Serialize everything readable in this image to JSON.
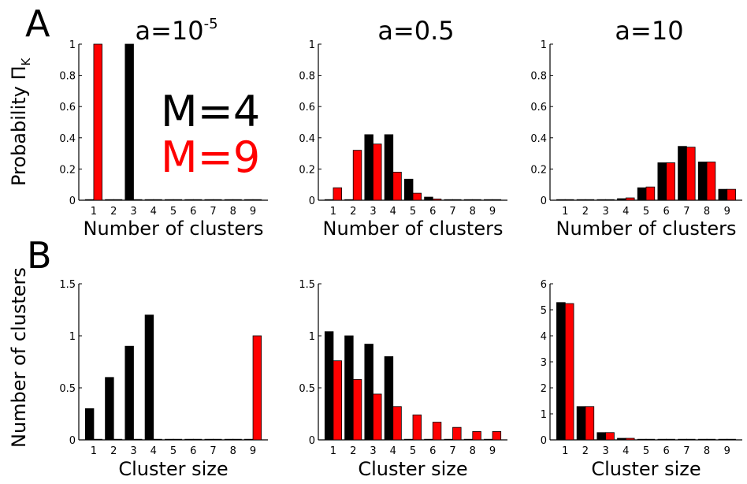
{
  "figure": {
    "panel_letters": [
      "A",
      "B"
    ],
    "row_a_ylabel": "Probability Π",
    "row_a_ylabel_sub": "K",
    "row_b_ylabel": "Number of clusters",
    "legend": [
      {
        "label": "M=4",
        "color": "#000000"
      },
      {
        "label": "M=9",
        "color": "#ff0000"
      }
    ]
  },
  "chart_data": [
    {
      "type": "bar",
      "title": "a=10",
      "title_sup": "-5",
      "xlabel": "Number of clusters",
      "ylabel": "Probability Π_K",
      "categories": [
        "1",
        "2",
        "3",
        "4",
        "5",
        "6",
        "7",
        "8",
        "9"
      ],
      "ylim": [
        0,
        1
      ],
      "yticks": [
        "0",
        "0.2",
        "0.4",
        "0.6",
        "0.8",
        "1"
      ],
      "yticks_values": [
        0,
        0.2,
        0.4,
        0.6,
        0.8,
        1
      ],
      "series": [
        {
          "name": "M=4",
          "color": "#000000",
          "values": [
            0,
            0,
            1,
            0,
            0,
            0,
            0,
            0,
            0
          ]
        },
        {
          "name": "M=9",
          "color": "#ff0000",
          "values": [
            1,
            0,
            0,
            0,
            0,
            0,
            0,
            0,
            0
          ]
        }
      ]
    },
    {
      "type": "bar",
      "title": "a=0.5",
      "xlabel": "Number of clusters",
      "categories": [
        "1",
        "2",
        "3",
        "4",
        "5",
        "6",
        "7",
        "8",
        "9"
      ],
      "ylim": [
        0,
        1
      ],
      "yticks": [
        "0",
        "0.2",
        "0.4",
        "0.6",
        "0.8",
        "1"
      ],
      "yticks_values": [
        0,
        0.2,
        0.4,
        0.6,
        0.8,
        1
      ],
      "series": [
        {
          "name": "M=4",
          "color": "#000000",
          "values": [
            0,
            0,
            0.42,
            0.42,
            0.135,
            0.02,
            0,
            0,
            0
          ]
        },
        {
          "name": "M=9",
          "color": "#ff0000",
          "values": [
            0.08,
            0.32,
            0.36,
            0.18,
            0.045,
            0.008,
            0.002,
            0.001,
            0.001
          ]
        }
      ]
    },
    {
      "type": "bar",
      "title": "a=10",
      "xlabel": "Number of clusters",
      "categories": [
        "1",
        "2",
        "3",
        "4",
        "5",
        "6",
        "7",
        "8",
        "9"
      ],
      "ylim": [
        0,
        1
      ],
      "yticks": [
        "0",
        "0.2",
        "0.4",
        "0.6",
        "0.8",
        "1"
      ],
      "yticks_values": [
        0,
        0.2,
        0.4,
        0.6,
        0.8,
        1
      ],
      "series": [
        {
          "name": "M=4",
          "color": "#000000",
          "values": [
            0,
            0,
            0,
            0.01,
            0.08,
            0.24,
            0.345,
            0.245,
            0.07
          ]
        },
        {
          "name": "M=9",
          "color": "#ff0000",
          "values": [
            0,
            0,
            0.002,
            0.015,
            0.085,
            0.24,
            0.34,
            0.245,
            0.07
          ]
        }
      ]
    },
    {
      "type": "bar",
      "xlabel": "Cluster size",
      "ylabel": "Number of clusters",
      "categories": [
        "1",
        "2",
        "3",
        "4",
        "5",
        "6",
        "7",
        "8",
        "9"
      ],
      "ylim": [
        0,
        1.5
      ],
      "yticks": [
        "0",
        "0.5",
        "1",
        "1.5"
      ],
      "yticks_values": [
        0,
        0.5,
        1,
        1.5
      ],
      "series": [
        {
          "name": "M=4",
          "color": "#000000",
          "values": [
            0.3,
            0.6,
            0.9,
            1.2,
            0,
            0,
            0,
            0,
            0
          ]
        },
        {
          "name": "M=9",
          "color": "#ff0000",
          "values": [
            0,
            0,
            0,
            0,
            0,
            0,
            0,
            0,
            1.0
          ]
        }
      ]
    },
    {
      "type": "bar",
      "xlabel": "Cluster size",
      "categories": [
        "1",
        "2",
        "3",
        "4",
        "5",
        "6",
        "7",
        "8",
        "9"
      ],
      "ylim": [
        0,
        1.5
      ],
      "yticks": [
        "0",
        "0.5",
        "1",
        "1.5"
      ],
      "yticks_values": [
        0,
        0.5,
        1,
        1.5
      ],
      "series": [
        {
          "name": "M=4",
          "color": "#000000",
          "values": [
            1.04,
            1.0,
            0.92,
            0.8,
            0,
            0,
            0,
            0,
            0
          ]
        },
        {
          "name": "M=9",
          "color": "#ff0000",
          "values": [
            0.76,
            0.58,
            0.44,
            0.32,
            0.24,
            0.17,
            0.12,
            0.08,
            0.08
          ]
        }
      ]
    },
    {
      "type": "bar",
      "xlabel": "Cluster size",
      "categories": [
        "1",
        "2",
        "3",
        "4",
        "5",
        "6",
        "7",
        "8",
        "9"
      ],
      "ylim": [
        0,
        6
      ],
      "yticks": [
        "0",
        "1",
        "2",
        "3",
        "4",
        "5",
        "6"
      ],
      "yticks_values": [
        0,
        1,
        2,
        3,
        4,
        5,
        6
      ],
      "series": [
        {
          "name": "M=4",
          "color": "#000000",
          "values": [
            5.28,
            1.28,
            0.28,
            0.06,
            0.01,
            0,
            0,
            0,
            0
          ]
        },
        {
          "name": "M=9",
          "color": "#ff0000",
          "values": [
            5.24,
            1.28,
            0.28,
            0.06,
            0.01,
            0,
            0,
            0,
            0
          ]
        }
      ]
    }
  ]
}
